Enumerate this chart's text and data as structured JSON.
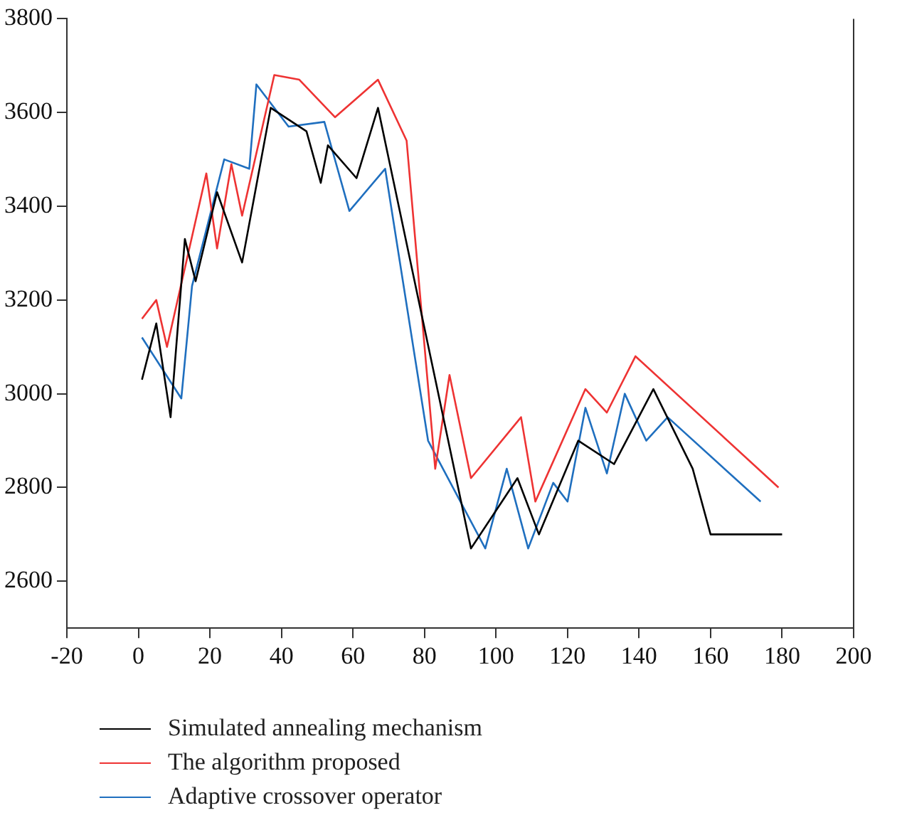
{
  "chart_data": {
    "type": "line",
    "xlim": [
      -20,
      200
    ],
    "xticks": [
      -20,
      0,
      20,
      40,
      60,
      80,
      100,
      120,
      140,
      160,
      180,
      200
    ],
    "ylim": [
      2500,
      3800
    ],
    "yticks": [
      2600,
      2800,
      3000,
      3200,
      3400,
      3600,
      3800
    ],
    "grid": false,
    "legend": "bottom",
    "marker": "none",
    "line_style": "solid",
    "series": [
      {
        "name": "Simulated annealing mechanism",
        "color": "#000000",
        "x": [
          1,
          5,
          9,
          13,
          16,
          22,
          29,
          37,
          47,
          51,
          53,
          61,
          67,
          93,
          106,
          112,
          123,
          133,
          144,
          155,
          160,
          180
        ],
        "values": [
          3030,
          3150,
          2950,
          3330,
          3240,
          3430,
          3280,
          3610,
          3560,
          3450,
          3530,
          3460,
          3610,
          2670,
          2820,
          2700,
          2900,
          2850,
          3010,
          2840,
          2700,
          2700
        ]
      },
      {
        "name": "The algorithm proposed",
        "color": "#ee3333",
        "x": [
          1,
          5,
          8,
          19,
          22,
          26,
          29,
          38,
          45,
          55,
          67,
          75,
          83,
          87,
          93,
          107,
          111,
          125,
          131,
          139,
          179
        ],
        "values": [
          3160,
          3200,
          3100,
          3470,
          3310,
          3490,
          3380,
          3680,
          3670,
          3590,
          3670,
          3540,
          2840,
          3040,
          2820,
          2950,
          2770,
          3010,
          2960,
          3080,
          2800
        ]
      },
      {
        "name": "Adaptive crossover operator",
        "color": "#1f6fbf",
        "x": [
          1,
          12,
          15,
          24,
          31,
          33,
          42,
          52,
          59,
          69,
          81,
          97,
          103,
          109,
          116,
          120,
          125,
          131,
          136,
          142,
          148,
          174
        ],
        "values": [
          3120,
          2990,
          3230,
          3500,
          3480,
          3660,
          3570,
          3580,
          3390,
          3480,
          2900,
          2670,
          2840,
          2670,
          2810,
          2770,
          2970,
          2830,
          3000,
          2900,
          2950,
          2770
        ]
      }
    ]
  }
}
